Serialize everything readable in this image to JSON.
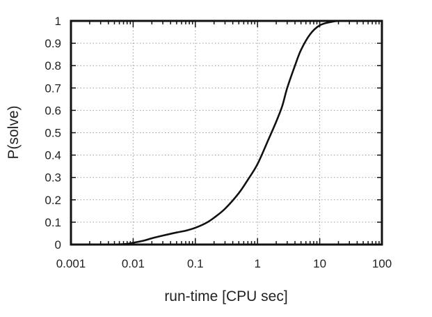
{
  "chart_data": {
    "type": "line",
    "title": "",
    "xlabel": "run-time [CPU sec]",
    "ylabel": "P(solve)",
    "x_scale": "log",
    "xlim": [
      0.001,
      100
    ],
    "ylim": [
      0,
      1
    ],
    "grid": true,
    "x_ticks": [
      0.001,
      0.01,
      0.1,
      1,
      10,
      100
    ],
    "x_tick_labels": [
      "0.001",
      "0.01",
      "0.1",
      "1",
      "10",
      "100"
    ],
    "y_ticks": [
      0,
      0.1,
      0.2,
      0.3,
      0.4,
      0.5,
      0.6,
      0.7,
      0.8,
      0.9,
      1
    ],
    "y_tick_labels": [
      "0",
      "0.1",
      "0.2",
      "0.3",
      "0.4",
      "0.5",
      "0.6",
      "0.7",
      "0.8",
      "0.9",
      "1"
    ],
    "series": [
      {
        "color": "#111111",
        "x": [
          0.005,
          0.008,
          0.01,
          0.015,
          0.02,
          0.03,
          0.05,
          0.07,
          0.1,
          0.15,
          0.2,
          0.3,
          0.5,
          0.7,
          1,
          1.5,
          2,
          2.5,
          3,
          4,
          5,
          7,
          10,
          15,
          20,
          30,
          100
        ],
        "y": [
          0.0,
          0.003,
          0.008,
          0.018,
          0.028,
          0.04,
          0.054,
          0.062,
          0.075,
          0.097,
          0.12,
          0.16,
          0.23,
          0.29,
          0.36,
          0.47,
          0.55,
          0.62,
          0.7,
          0.8,
          0.87,
          0.94,
          0.98,
          0.995,
          1.0,
          1.0,
          1.0
        ]
      }
    ]
  }
}
